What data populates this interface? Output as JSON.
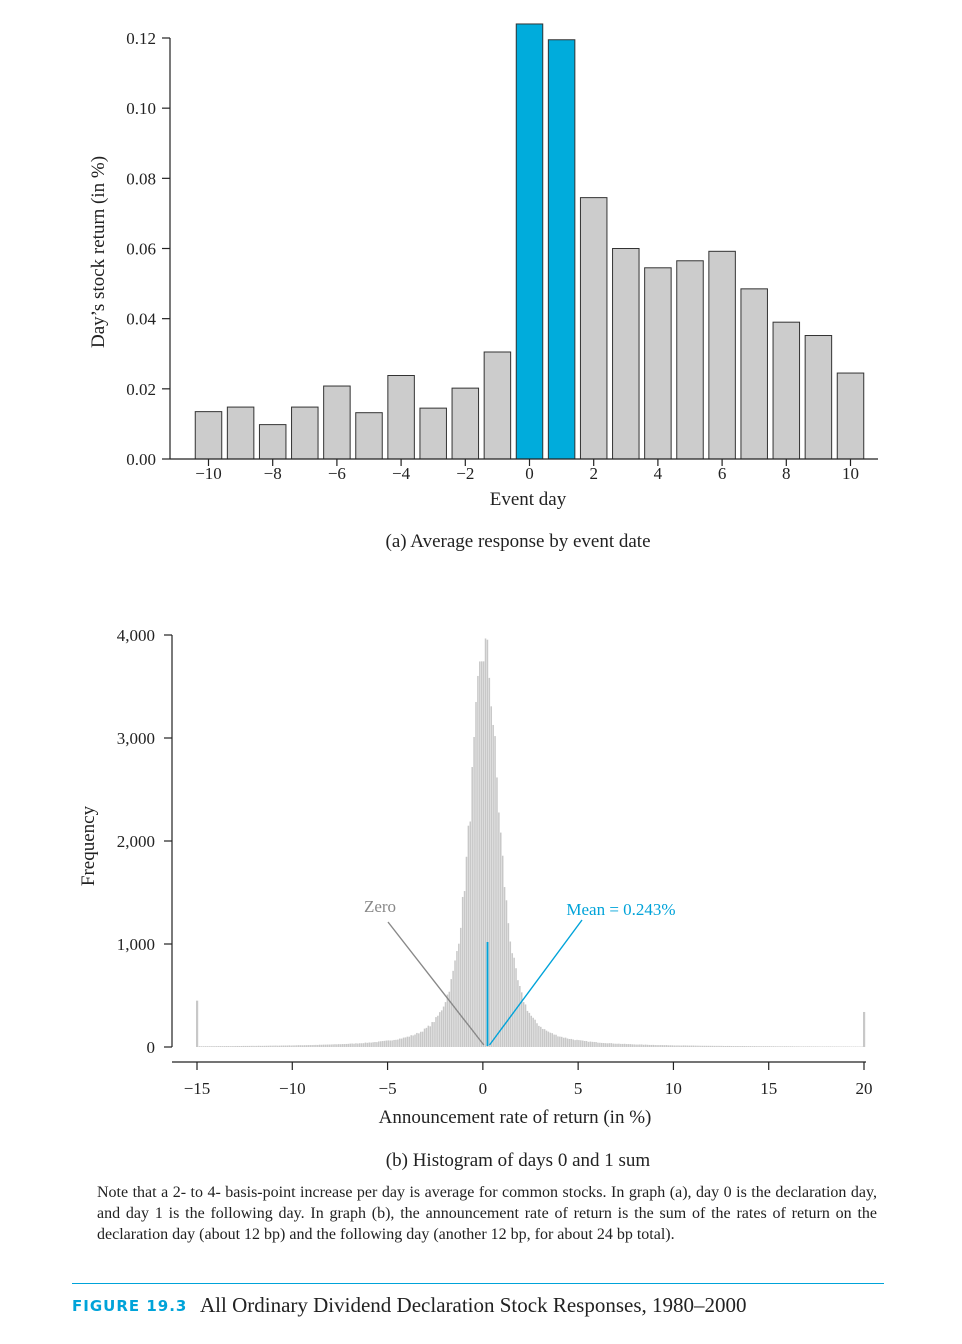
{
  "chart_data": [
    {
      "type": "bar",
      "caption": "(a) Average response by event date",
      "xlabel": "Event day",
      "ylabel": "Day’s stock return (in %)",
      "x_ticks": [
        "−10",
        "−8",
        "−6",
        "−4",
        "−2",
        "0",
        "2",
        "4",
        "6",
        "8",
        "10"
      ],
      "y_ticks": [
        "0.00",
        "0.02",
        "0.04",
        "0.06",
        "0.08",
        "0.10",
        "0.12"
      ],
      "ylim": [
        0,
        0.12
      ],
      "x": [
        -10,
        -9,
        -8,
        -7,
        -6,
        -5,
        -4,
        -3,
        -2,
        -1,
        0,
        1,
        2,
        3,
        4,
        5,
        6,
        7,
        8,
        9,
        10
      ],
      "values": [
        0.0135,
        0.0148,
        0.0098,
        0.0148,
        0.0208,
        0.0132,
        0.0238,
        0.0145,
        0.0202,
        0.0305,
        0.124,
        0.1195,
        0.0745,
        0.06,
        0.0545,
        0.0565,
        0.0592,
        0.0485,
        0.039,
        0.0352,
        0.0245
      ],
      "highlight": [
        0,
        1
      ],
      "colors": {
        "default": "#cccccc",
        "highlight": "#00acdc",
        "edge": "#333333"
      }
    },
    {
      "type": "histogram",
      "caption": "(b) Histogram of days 0 and 1 sum",
      "xlabel": "Announcement rate of return (in %)",
      "ylabel": "Frequency",
      "x_ticks": [
        "−15",
        "−10",
        "−5",
        "0",
        "5",
        "10",
        "15",
        "20"
      ],
      "y_ticks": [
        "0",
        "1,000",
        "2,000",
        "3,000",
        "4,000"
      ],
      "xlim": [
        -15,
        20
      ],
      "ylim": [
        0,
        4000
      ],
      "bin_width": 0.1,
      "peak_frequency": 3950,
      "center": 0.1,
      "tail_spikes": [
        {
          "x": -15,
          "frequency": 450
        },
        {
          "x": 20,
          "frequency": 340
        }
      ],
      "annotations": [
        {
          "label": "Zero",
          "x": 0,
          "color": "#888888"
        },
        {
          "label": "Mean = 0.243%",
          "x": 0.243,
          "color": "#00a3d9"
        }
      ],
      "colors": {
        "bars": "#c8c8c8"
      }
    }
  ],
  "note": "Note that a 2- to 4- basis-point increase per day is average for common stocks. In graph (a), day 0 is the declaration day, and day 1 is the following day. In graph (b), the announcement rate of return is the sum of the rates of return on the declaration day (about 12 bp) and the following day (another 12 bp, for about 24 bp total).",
  "figure": {
    "label": "FIGURE 19.3",
    "title": "All Ordinary Dividend Declaration Stock Responses, 1980–2000"
  }
}
